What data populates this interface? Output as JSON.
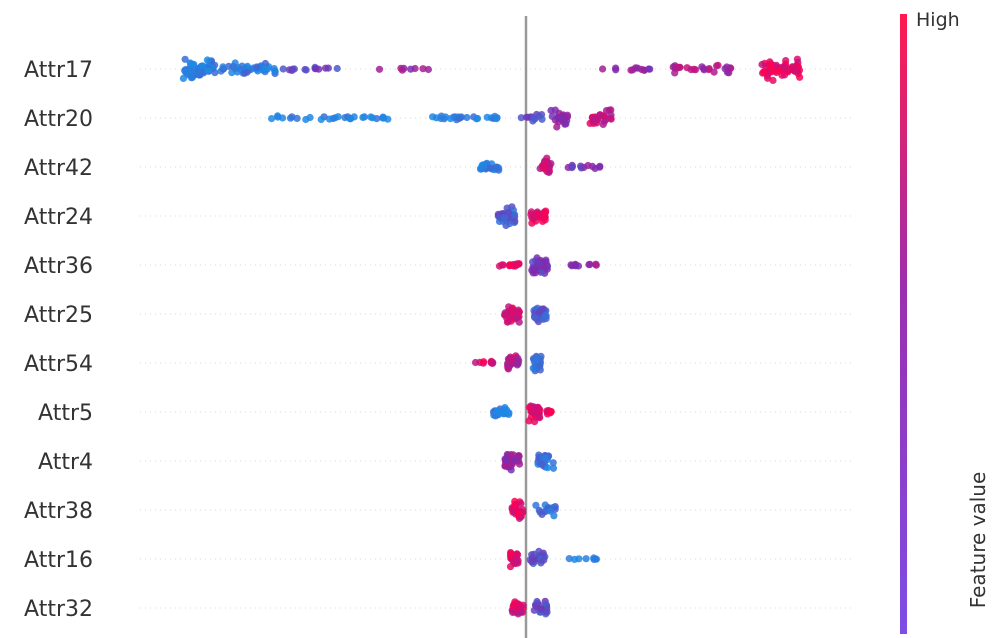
{
  "chart_data": {
    "type": "scatter",
    "subtype": "beeswarm",
    "title": "",
    "xlabel": "",
    "ylabel": "",
    "xlim": [
      -7,
      6
    ],
    "zero_line": 0,
    "features": [
      "Attr17",
      "Attr20",
      "Attr42",
      "Attr24",
      "Attr36",
      "Attr25",
      "Attr54",
      "Attr5",
      "Attr4",
      "Attr38",
      "Attr16",
      "Attr32"
    ],
    "colorbar": {
      "high_label": "High",
      "title": "Feature value",
      "low_color": "#1e88e5",
      "mid_color": "#7b2cb2",
      "high_color": "#ff0051"
    },
    "series": [
      {
        "name": "Attr17",
        "clusters": [
          {
            "x": -5.9,
            "spread": 0.3,
            "n": 60,
            "v": 0.05,
            "h": 26
          },
          {
            "x": -5.0,
            "spread": 0.5,
            "n": 40,
            "v": 0.08,
            "h": 16
          },
          {
            "x": -3.9,
            "spread": 0.5,
            "n": 14,
            "v": 0.35,
            "h": 6
          },
          {
            "x": -2.2,
            "spread": 0.45,
            "n": 8,
            "v": 0.55,
            "h": 4
          },
          {
            "x": 1.7,
            "spread": 0.55,
            "n": 12,
            "v": 0.6,
            "h": 6
          },
          {
            "x": 3.2,
            "spread": 0.55,
            "n": 26,
            "v": 0.7,
            "h": 12
          },
          {
            "x": 4.6,
            "spread": 0.35,
            "n": 60,
            "v": 0.92,
            "h": 26
          }
        ]
      },
      {
        "name": "Attr20",
        "clusters": [
          {
            "x": -3.5,
            "spread": 1.1,
            "n": 30,
            "v": 0.02,
            "h": 5
          },
          {
            "x": -1.1,
            "spread": 0.6,
            "n": 24,
            "v": 0.05,
            "h": 7
          },
          {
            "x": 0.6,
            "spread": 0.15,
            "n": 26,
            "v": 0.55,
            "h": 22
          },
          {
            "x": 1.35,
            "spread": 0.2,
            "n": 30,
            "v": 0.8,
            "h": 22
          },
          {
            "x": 0.1,
            "spread": 0.2,
            "n": 12,
            "v": 0.3,
            "h": 10
          }
        ]
      },
      {
        "name": "Attr42",
        "clusters": [
          {
            "x": -0.65,
            "spread": 0.18,
            "n": 22,
            "v": 0.05,
            "h": 12
          },
          {
            "x": 0.35,
            "spread": 0.1,
            "n": 28,
            "v": 0.8,
            "h": 22
          },
          {
            "x": 1.1,
            "spread": 0.35,
            "n": 12,
            "v": 0.5,
            "h": 5
          }
        ]
      },
      {
        "name": "Attr24",
        "clusters": [
          {
            "x": -0.35,
            "spread": 0.15,
            "n": 34,
            "v": 0.25,
            "h": 22
          },
          {
            "x": 0.22,
            "spread": 0.14,
            "n": 30,
            "v": 0.9,
            "h": 20
          }
        ]
      },
      {
        "name": "Attr36",
        "clusters": [
          {
            "x": -0.3,
            "spread": 0.18,
            "n": 16,
            "v": 0.92,
            "h": 8
          },
          {
            "x": 0.25,
            "spread": 0.15,
            "n": 44,
            "v": 0.45,
            "h": 22
          },
          {
            "x": 1.05,
            "spread": 0.25,
            "n": 10,
            "v": 0.55,
            "h": 5
          }
        ]
      },
      {
        "name": "Attr25",
        "clusters": [
          {
            "x": -0.25,
            "spread": 0.14,
            "n": 36,
            "v": 0.85,
            "h": 22
          },
          {
            "x": 0.25,
            "spread": 0.12,
            "n": 30,
            "v": 0.25,
            "h": 22
          }
        ]
      },
      {
        "name": "Attr54",
        "clusters": [
          {
            "x": -0.75,
            "spread": 0.18,
            "n": 10,
            "v": 0.9,
            "h": 6
          },
          {
            "x": -0.25,
            "spread": 0.12,
            "n": 28,
            "v": 0.7,
            "h": 20
          },
          {
            "x": 0.2,
            "spread": 0.07,
            "n": 24,
            "v": 0.15,
            "h": 22
          }
        ]
      },
      {
        "name": "Attr5",
        "clusters": [
          {
            "x": -0.45,
            "spread": 0.15,
            "n": 22,
            "v": 0.05,
            "h": 12
          },
          {
            "x": 0.15,
            "spread": 0.1,
            "n": 34,
            "v": 0.85,
            "h": 22
          },
          {
            "x": 0.38,
            "spread": 0.08,
            "n": 8,
            "v": 0.95,
            "h": 8
          }
        ]
      },
      {
        "name": "Attr4",
        "clusters": [
          {
            "x": -0.25,
            "spread": 0.14,
            "n": 36,
            "v": 0.6,
            "h": 22
          },
          {
            "x": 0.35,
            "spread": 0.15,
            "n": 22,
            "v": 0.15,
            "h": 18
          }
        ]
      },
      {
        "name": "Attr38",
        "clusters": [
          {
            "x": -0.15,
            "spread": 0.1,
            "n": 34,
            "v": 0.9,
            "h": 22
          },
          {
            "x": 0.35,
            "spread": 0.2,
            "n": 18,
            "v": 0.15,
            "h": 14
          }
        ]
      },
      {
        "name": "Attr16",
        "clusters": [
          {
            "x": -0.2,
            "spread": 0.08,
            "n": 30,
            "v": 0.9,
            "h": 22
          },
          {
            "x": 0.2,
            "spread": 0.15,
            "n": 22,
            "v": 0.3,
            "h": 18
          },
          {
            "x": 1.0,
            "spread": 0.35,
            "n": 8,
            "v": 0.05,
            "h": 4
          }
        ]
      },
      {
        "name": "Attr32",
        "clusters": [
          {
            "x": -0.15,
            "spread": 0.1,
            "n": 30,
            "v": 0.8,
            "h": 22
          },
          {
            "x": 0.25,
            "spread": 0.14,
            "n": 24,
            "v": 0.35,
            "h": 20
          }
        ]
      }
    ]
  }
}
